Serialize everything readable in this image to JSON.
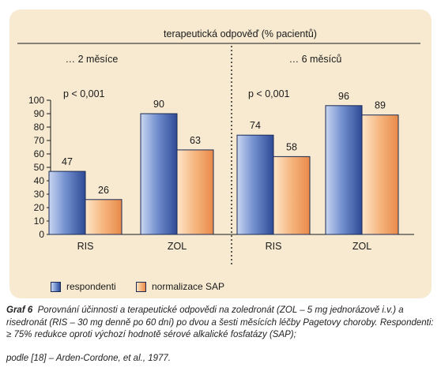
{
  "chart_data": {
    "type": "bar",
    "header": "terapeutická odpověď (% pacientů)",
    "panels": [
      {
        "title": "… 2 měsíce",
        "annotation": "p < 0,001",
        "categories": [
          "RIS",
          "ZOL"
        ],
        "series": [
          {
            "name": "respondenti",
            "values": [
              47,
              90
            ]
          },
          {
            "name": "normalizace SAP",
            "values": [
              26,
              63
            ]
          }
        ]
      },
      {
        "title": "… 6 měsíců",
        "annotation": "p < 0,001",
        "categories": [
          "RIS",
          "ZOL"
        ],
        "series": [
          {
            "name": "respondenti",
            "values": [
              74,
              96
            ]
          },
          {
            "name": "normalizace SAP",
            "values": [
              58,
              89
            ]
          }
        ]
      }
    ],
    "yticks": [
      0,
      10,
      20,
      30,
      40,
      50,
      60,
      70,
      80,
      90,
      100
    ],
    "ylim": [
      0,
      100
    ],
    "grid": false,
    "legend_position": "bottom-left",
    "colors": {
      "respondenti": "#6f8fcf",
      "normalizace SAP": "#f4b27a",
      "background": "#f7ead1",
      "outline": "#1a2a55"
    }
  },
  "legend": {
    "respondenti": "respondenti",
    "normalizace": "normalizace SAP"
  },
  "caption": {
    "label": "Graf 6",
    "text": "Porovnání účinnosti a terapeutické odpovědi na zoledronát (ZOL – 5 mg jednorázově i.v.) a risedronát (RIS – 30 mg denně po 60 dní) po dvou a šesti měsících léčby Pagetovy choroby. Respondenti: ≥ 75% redukce oproti výchozí hodnotě sérové alkalické fosfatázy (SAP);",
    "source": "podle [18] – Arden-Cordone,  et al., 1977."
  }
}
